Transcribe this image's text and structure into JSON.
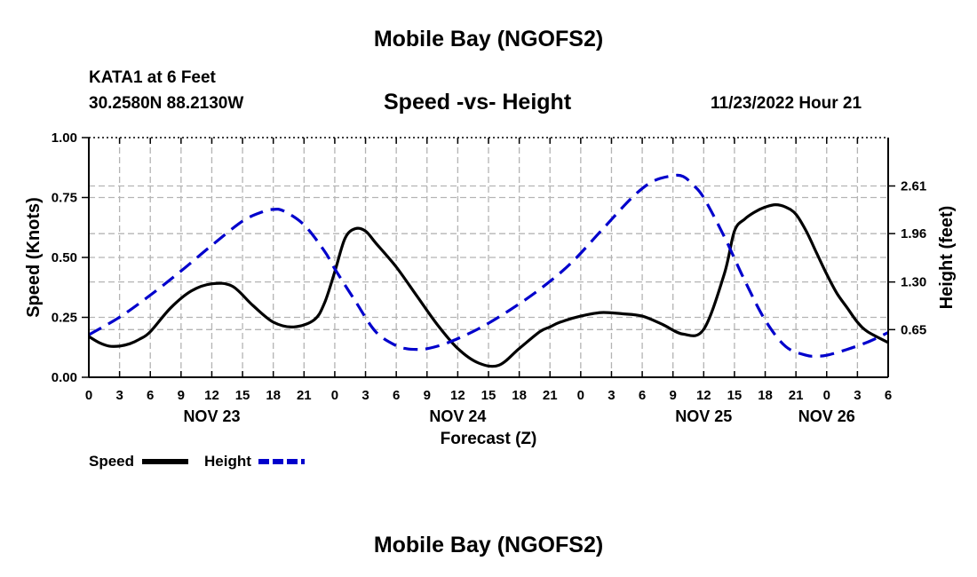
{
  "header": {
    "title": "Mobile Bay (NGOFS2)",
    "station": "KATA1 at 6 Feet",
    "coordinates": "30.2580N  88.2130W",
    "subtitle": "Speed -vs- Height",
    "datetime": "11/23/2022 Hour 21"
  },
  "footer": {
    "title": "Mobile Bay (NGOFS2)"
  },
  "colors": {
    "speed": "#000000",
    "height": "#0000cc",
    "grid": "#b4b4b4"
  },
  "chart_data": {
    "type": "line",
    "title": "Speed -vs- Height",
    "xlabel": "Forecast (Z)",
    "ylabel": "Speed (Knots)",
    "y2label": "Height (feet)",
    "x_unit": "hours from 00Z Nov 23",
    "xlim": [
      0,
      78
    ],
    "ylim": [
      0,
      1.0
    ],
    "y2lim": [
      0,
      3.27
    ],
    "grid": true,
    "x_ticks": [
      0,
      3,
      6,
      9,
      12,
      15,
      18,
      21,
      24,
      27,
      30,
      33,
      36,
      39,
      42,
      45,
      48,
      51,
      54,
      57,
      60,
      63,
      66,
      69,
      72,
      75,
      78
    ],
    "x_tick_labels": [
      "0",
      "3",
      "6",
      "9",
      "12",
      "15",
      "18",
      "21",
      "0",
      "3",
      "6",
      "9",
      "12",
      "15",
      "18",
      "21",
      "0",
      "3",
      "6",
      "9",
      "12",
      "15",
      "18",
      "21",
      "0",
      "3",
      "6"
    ],
    "date_labels": [
      {
        "x": 12,
        "label": "NOV 23"
      },
      {
        "x": 36,
        "label": "NOV 24"
      },
      {
        "x": 60,
        "label": "NOV 25"
      },
      {
        "x": 72,
        "label": "NOV 26"
      }
    ],
    "y_ticks": [
      0,
      0.25,
      0.5,
      0.75,
      1.0
    ],
    "y_tick_labels": [
      "0.00",
      "0.25",
      "0.50",
      "0.75",
      "1.00"
    ],
    "y2_ticks": [
      0.65,
      1.3,
      1.96,
      2.61
    ],
    "y2_tick_labels": [
      "0.65",
      "1.30",
      "1.96",
      "2.61"
    ],
    "legend": {
      "placement": "bottom-left",
      "speed_label": "Speed",
      "height_label": "Height"
    },
    "series": [
      {
        "name": "Speed",
        "axis": "left",
        "x": [
          0,
          1,
          2,
          3,
          4,
          5,
          6,
          8,
          10,
          12,
          14,
          16,
          18,
          20,
          22,
          23,
          24,
          25,
          26,
          27,
          28,
          30,
          32,
          34,
          36,
          38,
          40,
          42,
          44,
          45,
          46,
          48,
          50,
          52,
          54,
          56,
          58,
          60,
          62,
          63,
          64,
          65,
          66,
          67,
          68,
          69,
          70,
          71,
          72,
          73,
          74,
          75,
          76,
          78
        ],
        "values": [
          0.17,
          0.145,
          0.13,
          0.13,
          0.14,
          0.16,
          0.19,
          0.29,
          0.36,
          0.39,
          0.38,
          0.3,
          0.23,
          0.21,
          0.24,
          0.31,
          0.44,
          0.58,
          0.62,
          0.61,
          0.56,
          0.46,
          0.34,
          0.22,
          0.12,
          0.06,
          0.05,
          0.12,
          0.19,
          0.21,
          0.23,
          0.255,
          0.27,
          0.265,
          0.255,
          0.22,
          0.18,
          0.2,
          0.43,
          0.61,
          0.66,
          0.69,
          0.71,
          0.72,
          0.71,
          0.68,
          0.61,
          0.52,
          0.43,
          0.35,
          0.29,
          0.23,
          0.19,
          0.145
        ]
      },
      {
        "name": "Height",
        "axis": "right",
        "x": [
          0,
          3,
          6,
          9,
          12,
          15,
          17,
          18,
          19,
          21,
          23,
          24,
          26,
          28,
          30,
          31,
          32,
          33,
          35,
          38,
          41,
          44,
          47,
          50,
          53,
          55,
          57,
          58,
          59,
          60,
          62,
          64,
          66,
          68,
          70,
          71,
          72,
          74,
          76,
          78
        ],
        "values": [
          0.58,
          0.82,
          1.12,
          1.45,
          1.8,
          2.13,
          2.26,
          2.29,
          2.27,
          2.08,
          1.72,
          1.48,
          1.04,
          0.62,
          0.43,
          0.39,
          0.38,
          0.39,
          0.47,
          0.66,
          0.91,
          1.2,
          1.55,
          2.0,
          2.45,
          2.67,
          2.75,
          2.74,
          2.62,
          2.45,
          1.92,
          1.32,
          0.78,
          0.42,
          0.3,
          0.29,
          0.3,
          0.38,
          0.48,
          0.61
        ]
      }
    ]
  }
}
